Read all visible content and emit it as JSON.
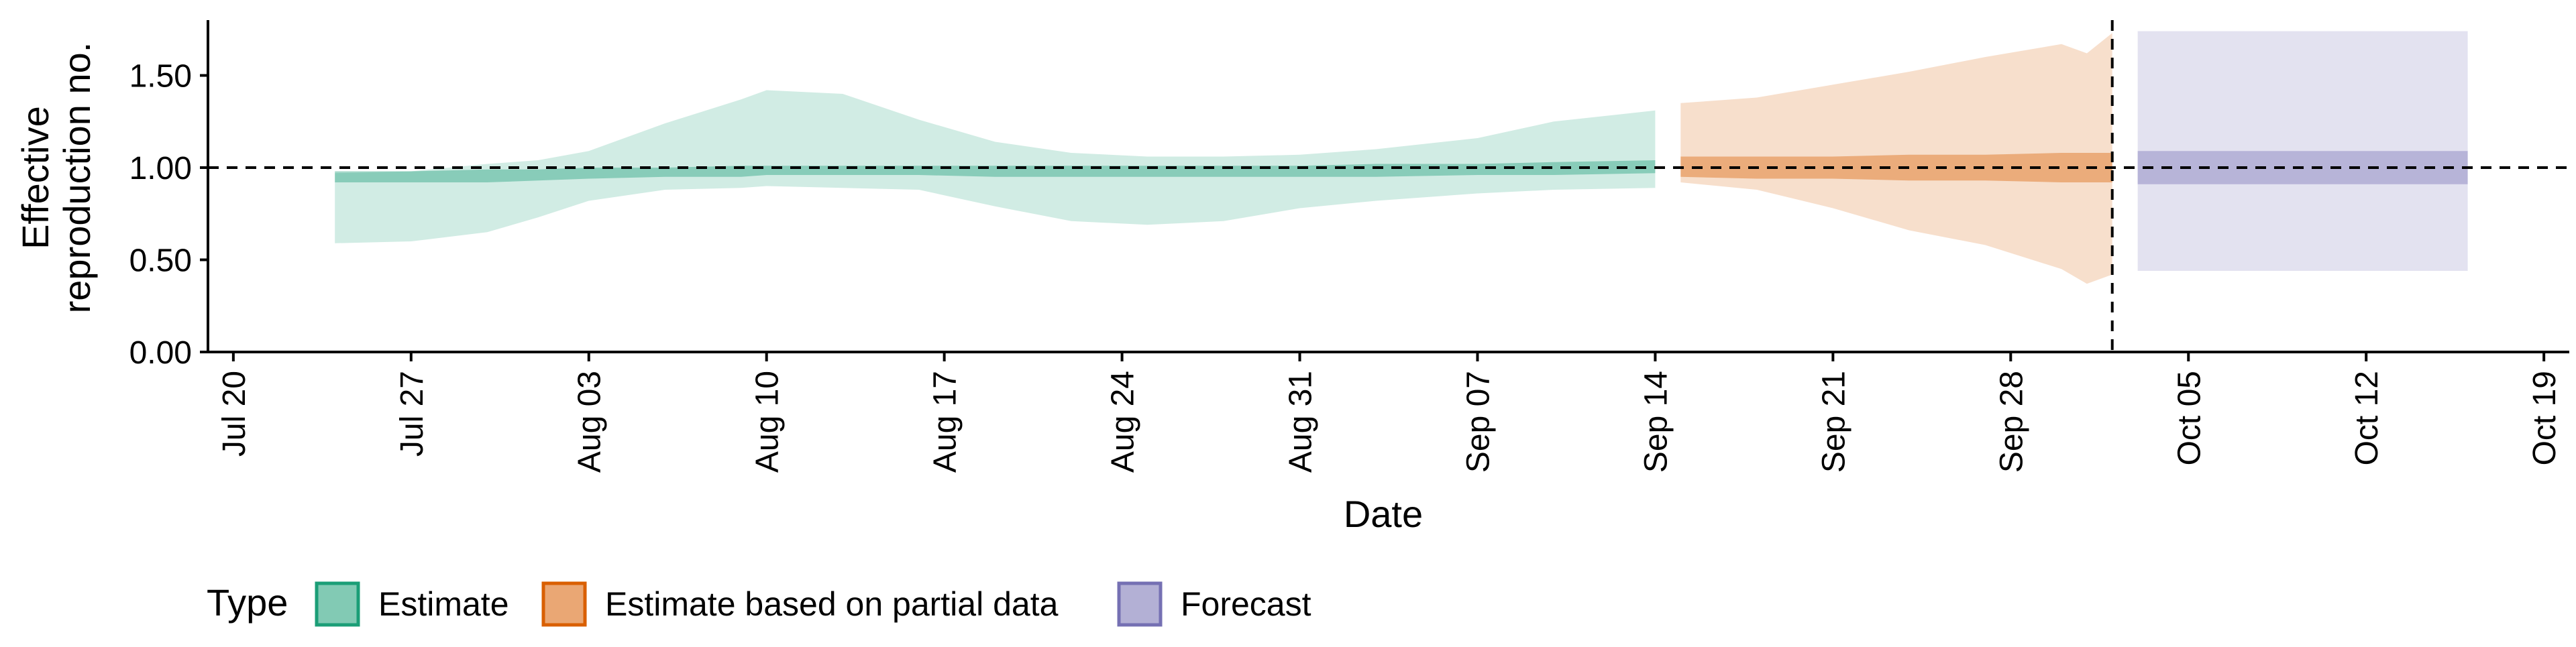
{
  "chart_data": {
    "type": "area",
    "xlabel": "Date",
    "ylabel_lines": [
      "Effective",
      "reproduction no."
    ],
    "y_ticks": [
      "0.00",
      "0.50",
      "1.00",
      "1.50"
    ],
    "ylim": [
      0,
      1.8
    ],
    "xlim": [
      "2020-07-19",
      "2020-10-20"
    ],
    "x_ticks": [
      {
        "label": "Jul 20",
        "date": "2020-07-20"
      },
      {
        "label": "Jul 27",
        "date": "2020-07-27"
      },
      {
        "label": "Aug 03",
        "date": "2020-08-03"
      },
      {
        "label": "Aug 10",
        "date": "2020-08-10"
      },
      {
        "label": "Aug 17",
        "date": "2020-08-17"
      },
      {
        "label": "Aug 24",
        "date": "2020-08-24"
      },
      {
        "label": "Aug 31",
        "date": "2020-08-31"
      },
      {
        "label": "Sep 07",
        "date": "2020-09-07"
      },
      {
        "label": "Sep 14",
        "date": "2020-09-14"
      },
      {
        "label": "Sep 21",
        "date": "2020-09-21"
      },
      {
        "label": "Sep 28",
        "date": "2020-09-28"
      },
      {
        "label": "Oct 05",
        "date": "2020-10-05"
      },
      {
        "label": "Oct 12",
        "date": "2020-10-12"
      },
      {
        "label": "Oct 19",
        "date": "2020-10-19"
      }
    ],
    "reference_lines": {
      "y": 1.0,
      "x_date": "2020-10-02"
    },
    "grid": false,
    "legend_position": "bottom",
    "legend_title": "Type",
    "series": [
      {
        "name": "Estimate",
        "color": "#1b9e77",
        "outer_alpha": 0.2,
        "inner_alpha": 0.4,
        "x": [
          "2020-07-24",
          "2020-07-27",
          "2020-07-30",
          "2020-08-01",
          "2020-08-03",
          "2020-08-06",
          "2020-08-09",
          "2020-08-10",
          "2020-08-13",
          "2020-08-16",
          "2020-08-19",
          "2020-08-22",
          "2020-08-25",
          "2020-08-28",
          "2020-08-31",
          "2020-09-03",
          "2020-09-07",
          "2020-09-10",
          "2020-09-14"
        ],
        "upper90": [
          0.97,
          0.98,
          1.02,
          1.04,
          1.09,
          1.24,
          1.37,
          1.42,
          1.4,
          1.26,
          1.14,
          1.08,
          1.06,
          1.06,
          1.07,
          1.1,
          1.16,
          1.25,
          1.31
        ],
        "lower90": [
          0.59,
          0.6,
          0.65,
          0.73,
          0.82,
          0.88,
          0.89,
          0.9,
          0.89,
          0.88,
          0.79,
          0.71,
          0.69,
          0.71,
          0.78,
          0.82,
          0.86,
          0.88,
          0.89
        ],
        "upper50": [
          0.98,
          0.98,
          0.99,
          0.99,
          1.0,
          1.0,
          1.01,
          1.01,
          1.01,
          1.01,
          1.01,
          1.01,
          1.01,
          1.01,
          1.01,
          1.02,
          1.02,
          1.03,
          1.04
        ],
        "lower50": [
          0.92,
          0.92,
          0.92,
          0.93,
          0.94,
          0.95,
          0.95,
          0.96,
          0.96,
          0.96,
          0.95,
          0.95,
          0.95,
          0.95,
          0.95,
          0.95,
          0.96,
          0.96,
          0.97
        ]
      },
      {
        "name": "Estimate based on partial data",
        "color": "#d95f02",
        "outer_alpha": 0.2,
        "inner_alpha": 0.4,
        "x": [
          "2020-09-15",
          "2020-09-18",
          "2020-09-21",
          "2020-09-24",
          "2020-09-27",
          "2020-09-30",
          "2020-10-01",
          "2020-10-02"
        ],
        "upper90": [
          1.35,
          1.38,
          1.45,
          1.52,
          1.6,
          1.67,
          1.62,
          1.73
        ],
        "lower90": [
          0.92,
          0.88,
          0.78,
          0.66,
          0.58,
          0.45,
          0.37,
          0.42
        ],
        "upper50": [
          1.06,
          1.06,
          1.06,
          1.07,
          1.07,
          1.08,
          1.08,
          1.08
        ],
        "lower50": [
          0.95,
          0.94,
          0.94,
          0.93,
          0.93,
          0.92,
          0.92,
          0.92
        ]
      },
      {
        "name": "Forecast",
        "color": "#7570b3",
        "outer_alpha": 0.2,
        "inner_alpha": 0.4,
        "x": [
          "2020-10-03",
          "2020-10-16"
        ],
        "upper90": [
          1.74,
          1.74
        ],
        "lower90": [
          0.44,
          0.44
        ],
        "upper50": [
          1.09,
          1.09
        ],
        "lower50": [
          0.91,
          0.91
        ]
      }
    ]
  }
}
